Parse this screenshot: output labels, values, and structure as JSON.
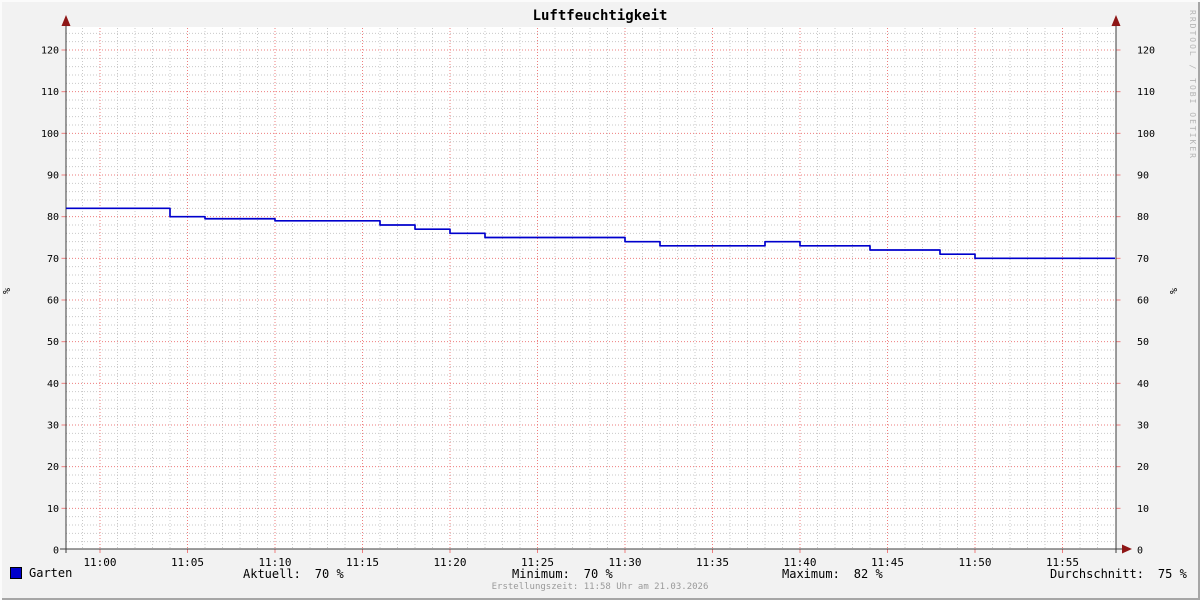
{
  "title": "Luftfeuchtigkeit",
  "watermark": "RRDTOOL / TOBI OETIKER",
  "footer": {
    "timestamp_note": "Erstellungszeit: 11:58 Uhr am 21.03.2026"
  },
  "legend": {
    "series_label": "Garten",
    "stats": [
      {
        "label": "Aktuell:",
        "value": "70 %"
      },
      {
        "label": "Minimum:",
        "value": "70 %"
      },
      {
        "label": "Maximum:",
        "value": "82 %"
      },
      {
        "label": "Durchschnitt:",
        "value": "75 %"
      }
    ]
  },
  "colors": {
    "line": "#0000cc",
    "legend_square": "#0000cc",
    "major_grid": "#ee7e7e",
    "minor_grid": "#c9c9c9",
    "axis": "#3c3c3c",
    "arrow": "#8e1616",
    "canvas": "#ffffff",
    "background": "#f2f2f2",
    "watermark": "#b5b5b5"
  },
  "chart_data": {
    "type": "line",
    "line_style": "step-after",
    "title": "Luftfeuchtigkeit",
    "ylabel_left": "%",
    "ylabel_right": "%",
    "xlabel": "",
    "x_origin": "11:00",
    "x_start": "10:58",
    "x_end": "11:58",
    "x_tick_labels": [
      "11:00",
      "11:05",
      "11:10",
      "11:15",
      "11:20",
      "11:25",
      "11:30",
      "11:35",
      "11:40",
      "11:45",
      "11:50",
      "11:55"
    ],
    "x_major_step_minutes": 5,
    "x_minor_step_minutes": 1,
    "y_ticks": [
      0,
      10,
      20,
      30,
      40,
      50,
      60,
      70,
      80,
      90,
      100,
      110,
      120
    ],
    "y_minor_step": 2,
    "ylim": [
      0,
      125
    ],
    "grid": true,
    "legend_position": "bottom",
    "series": [
      {
        "name": "Garten",
        "color": "#0000cc",
        "points": [
          [
            "10:58",
            82
          ],
          [
            "11:04",
            80
          ],
          [
            "11:06",
            79.5
          ],
          [
            "11:10",
            79
          ],
          [
            "11:16",
            78
          ],
          [
            "11:18",
            77
          ],
          [
            "11:20",
            76
          ],
          [
            "11:22",
            75
          ],
          [
            "11:30",
            74
          ],
          [
            "11:32",
            73
          ],
          [
            "11:38",
            74
          ],
          [
            "11:40",
            73
          ],
          [
            "11:44",
            72
          ],
          [
            "11:48",
            71
          ],
          [
            "11:50",
            70
          ],
          [
            "11:58",
            70
          ]
        ]
      }
    ],
    "stats": {
      "aktuell": "70 %",
      "minimum": "70 %",
      "maximum": "82 %",
      "durchschnitt": "75 %"
    }
  }
}
